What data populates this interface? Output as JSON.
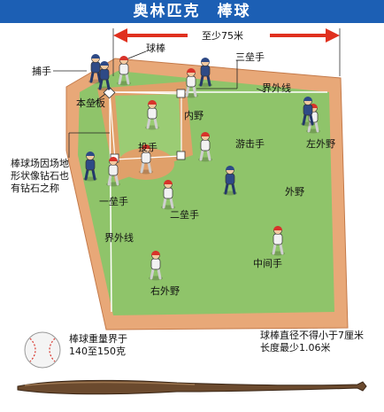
{
  "header": {
    "title": "奥林匹克　棒球"
  },
  "colors": {
    "header_bg": "#1c5fb4",
    "outfield": "#8fc46a",
    "infield_dirt": "#e0a06a",
    "warning_track": "#e8a878",
    "arrow_red": "#e0301e",
    "uniform": "#f2f2f2",
    "helmet": "#d8332a",
    "fielder_dark": "#2e4a86"
  },
  "distance": {
    "label": "至少75米"
  },
  "labels": {
    "bat": "球棒",
    "catcher": "捕手",
    "home_plate": "本垒板",
    "third_base": "三垒手",
    "foul_line_top": "界外线",
    "infield": "内野",
    "left_field": "左外野",
    "pitcher": "投手",
    "shortstop": "游击手",
    "first_base": "一垒手",
    "second_base": "二垒手",
    "outfield": "外野",
    "foul_line_left": "界外线",
    "center_field": "中间手",
    "right_field": "右外野"
  },
  "notes": {
    "field_shape": "棒球场因场地\n形状像钻石也有钻石之称",
    "ball_weight": "棒球重量界于\n140至150克",
    "bat_spec": "球棒直径不得小于7厘米\n长度最少1.06米"
  }
}
